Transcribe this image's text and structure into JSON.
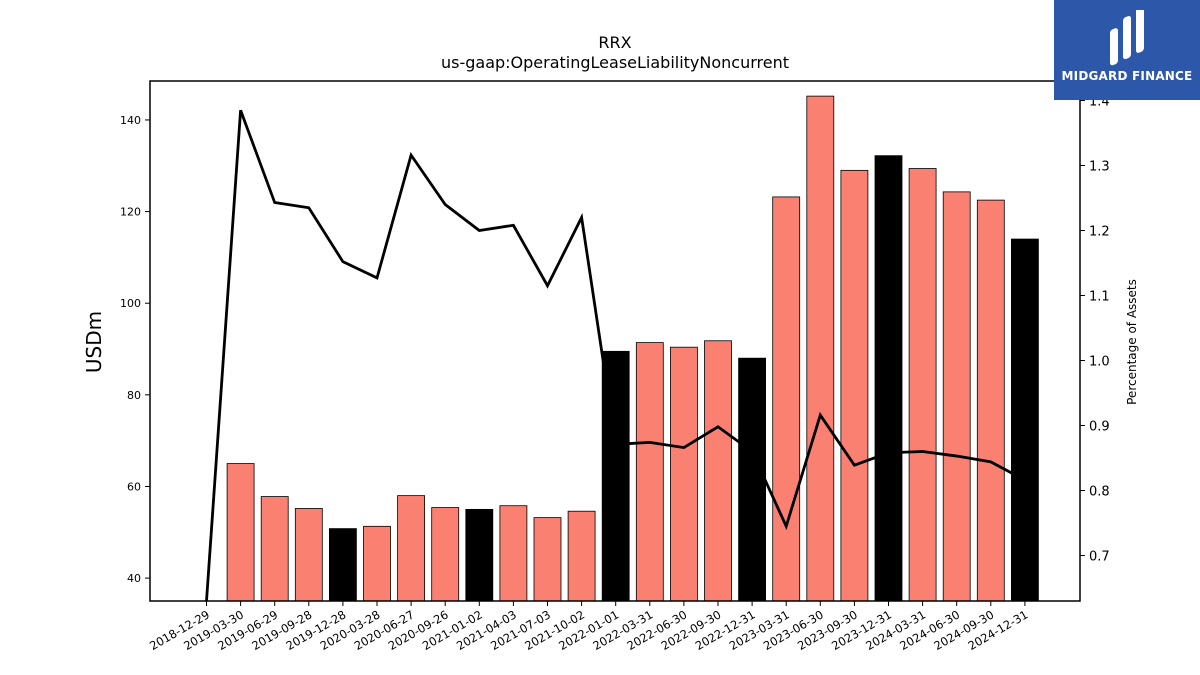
{
  "chart_data": {
    "type": "bar",
    "title": "RRX",
    "subtitle": "us-gaap:OperatingLeaseLiabilityNoncurrent",
    "ylabel": "USDm",
    "y2label": "Percentage of Assets",
    "ylim": [
      35,
      148.5
    ],
    "y2lim": [
      0.63,
      1.43
    ],
    "yticks": [
      40,
      60,
      80,
      100,
      120,
      140
    ],
    "y2ticks": [
      0.7,
      0.8,
      0.9,
      1.0,
      1.1,
      1.2,
      1.3,
      1.4
    ],
    "categories": [
      "2018-12-29",
      "2019-03-30",
      "2019-06-29",
      "2019-09-28",
      "2019-12-28",
      "2020-03-28",
      "2020-06-27",
      "2020-09-26",
      "2021-01-02",
      "2021-04-03",
      "2021-07-03",
      "2021-10-02",
      "2022-01-01",
      "2022-03-31",
      "2022-06-30",
      "2022-09-30",
      "2022-12-31",
      "2023-03-31",
      "2023-06-30",
      "2023-09-30",
      "2023-12-31",
      "2024-03-31",
      "2024-06-30",
      "2024-09-30",
      "2024-12-31"
    ],
    "series": [
      {
        "kind": "bar",
        "values": [
          null,
          65.0,
          57.8,
          55.2,
          50.8,
          51.3,
          58.0,
          55.4,
          55.0,
          55.8,
          53.2,
          54.6,
          89.5,
          91.4,
          90.4,
          91.8,
          88.0,
          123.2,
          145.2,
          129.0,
          132.2,
          129.4,
          124.3,
          122.5,
          114.0
        ],
        "year_end": [
          false,
          false,
          false,
          false,
          true,
          false,
          false,
          false,
          true,
          false,
          false,
          false,
          true,
          false,
          false,
          false,
          true,
          false,
          false,
          false,
          true,
          false,
          false,
          false,
          true
        ],
        "color": "#fa8072",
        "year_end_color": "#000000"
      },
      {
        "kind": "line",
        "axis": "right",
        "values": [
          0.63,
          1.385,
          1.243,
          1.235,
          1.152,
          1.127,
          1.316,
          1.24,
          1.2,
          1.208,
          1.115,
          1.22,
          0.871,
          0.874,
          0.866,
          0.898,
          0.86,
          0.745,
          0.916,
          0.839,
          0.858,
          0.86,
          0.853,
          0.844,
          0.816
        ],
        "color": "#000000"
      }
    ]
  },
  "logo": {
    "text": "MIDGARD FINANCE",
    "background": "#2d57a8"
  }
}
